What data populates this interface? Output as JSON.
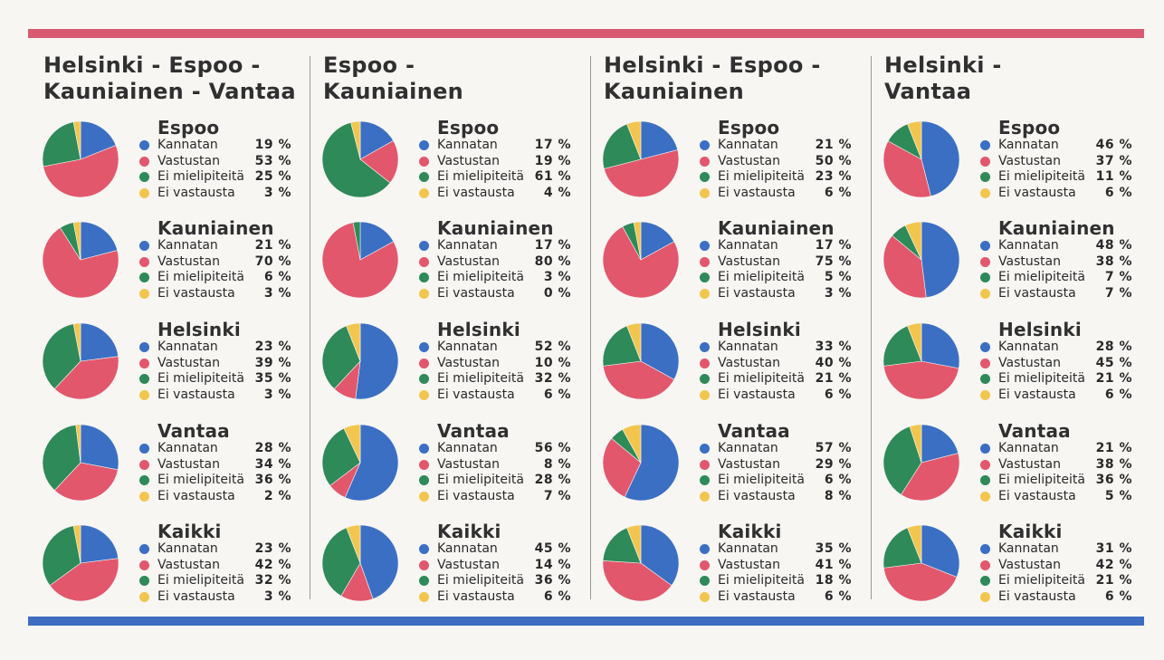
{
  "colors": {
    "kannatan": "#3b6fc4",
    "vastustan": "#e2576c",
    "ei_mielipiteita": "#2e8a58",
    "ei_vastausta": "#f2c64e",
    "top_bar": "#d85a70",
    "bottom_bar": "#3d6cc0"
  },
  "columns": [
    {
      "title": "Helsinki - Espoo -\nKauniainen - Vantaa",
      "charts": [
        {
          "city": "Espoo",
          "kannatan": "19 %",
          "vastustan": "53 %",
          "ei_mielipiteita": "25 %",
          "ei_vastausta": "3 %"
        },
        {
          "city": "Kauniainen",
          "kannatan": "21 %",
          "vastustan": "70 %",
          "ei_mielipiteita": "6 %",
          "ei_vastausta": "3 %"
        },
        {
          "city": "Helsinki",
          "kannatan": "23 %",
          "vastustan": "39 %",
          "ei_mielipiteita": "35 %",
          "ei_vastausta": "3 %"
        },
        {
          "city": "Vantaa",
          "kannatan": "28 %",
          "vastustan": "34 %",
          "ei_mielipiteita": "36 %",
          "ei_vastausta": "2 %"
        },
        {
          "city": "Kaikki",
          "kannatan": "23 %",
          "vastustan": "42 %",
          "ei_mielipiteita": "32 %",
          "ei_vastausta": "3 %"
        }
      ]
    },
    {
      "title": "Espoo -\nKauniainen",
      "charts": [
        {
          "city": "Espoo",
          "kannatan": "17 %",
          "vastustan": "19 %",
          "ei_mielipiteita": "61 %",
          "ei_vastausta": "4 %"
        },
        {
          "city": "Kauniainen",
          "kannatan": "17 %",
          "vastustan": "80 %",
          "ei_mielipiteita": "3 %",
          "ei_vastausta": "0 %"
        },
        {
          "city": "Helsinki",
          "kannatan": "52 %",
          "vastustan": "10 %",
          "ei_mielipiteita": "32 %",
          "ei_vastausta": "6 %"
        },
        {
          "city": "Vantaa",
          "kannatan": "56 %",
          "vastustan": "8 %",
          "ei_mielipiteita": "28 %",
          "ei_vastausta": "7 %"
        },
        {
          "city": "Kaikki",
          "kannatan": "45 %",
          "vastustan": "14 %",
          "ei_mielipiteita": "36 %",
          "ei_vastausta": "6 %"
        }
      ]
    },
    {
      "title": "Helsinki - Espoo -\nKauniainen",
      "charts": [
        {
          "city": "Espoo",
          "kannatan": "21 %",
          "vastustan": "50 %",
          "ei_mielipiteita": "23 %",
          "ei_vastausta": "6 %"
        },
        {
          "city": "Kauniainen",
          "kannatan": "17 %",
          "vastustan": "75 %",
          "ei_mielipiteita": "5 %",
          "ei_vastausta": "3 %"
        },
        {
          "city": "Helsinki",
          "kannatan": "33 %",
          "vastustan": "40 %",
          "ei_mielipiteita": "21 %",
          "ei_vastausta": "6 %"
        },
        {
          "city": "Vantaa",
          "kannatan": "57 %",
          "vastustan": "29 %",
          "ei_mielipiteita": "6 %",
          "ei_vastausta": "8 %"
        },
        {
          "city": "Kaikki",
          "kannatan": "35 %",
          "vastustan": "41 %",
          "ei_mielipiteita": "18 %",
          "ei_vastausta": "6 %"
        }
      ]
    },
    {
      "title": "Helsinki -\nVantaa",
      "charts": [
        {
          "city": "Espoo",
          "kannatan": "46 %",
          "vastustan": "37 %",
          "ei_mielipiteita": "11 %",
          "ei_vastausta": "6 %"
        },
        {
          "city": "Kauniainen",
          "kannatan": "48 %",
          "vastustan": "38 %",
          "ei_mielipiteita": "7 %",
          "ei_vastausta": "7 %"
        },
        {
          "city": "Helsinki",
          "kannatan": "28 %",
          "vastustan": "45 %",
          "ei_mielipiteita": "21 %",
          "ei_vastausta": "6 %"
        },
        {
          "city": "Vantaa",
          "kannatan": "21 %",
          "vastustan": "38 %",
          "ei_mielipiteita": "36 %",
          "ei_vastausta": "5 %"
        },
        {
          "city": "Kaikki",
          "kannatan": "31 %",
          "vastustan": "42 %",
          "ei_mielipiteita": "21 %",
          "ei_vastausta": "6 %"
        }
      ]
    }
  ],
  "legend_labels": {
    "kannatan": "Kannatan",
    "vastustan": "Vastustan",
    "ei_mielipiteita": "Ei mielipiteitä",
    "ei_vastausta": "Ei vastausta"
  },
  "chart_data": [
    {
      "type": "pie",
      "title": "Helsinki - Espoo - Kauniainen - Vantaa",
      "categories": [
        "Kannatan",
        "Vastustan",
        "Ei mielipiteitä",
        "Ei vastausta"
      ],
      "series": [
        {
          "name": "Espoo",
          "values": [
            19,
            53,
            25,
            3
          ]
        },
        {
          "name": "Kauniainen",
          "values": [
            21,
            70,
            6,
            3
          ]
        },
        {
          "name": "Helsinki",
          "values": [
            23,
            39,
            35,
            3
          ]
        },
        {
          "name": "Vantaa",
          "values": [
            28,
            34,
            36,
            2
          ]
        },
        {
          "name": "Kaikki",
          "values": [
            23,
            42,
            32,
            3
          ]
        }
      ]
    },
    {
      "type": "pie",
      "title": "Espoo - Kauniainen",
      "categories": [
        "Kannatan",
        "Vastustan",
        "Ei mielipiteitä",
        "Ei vastausta"
      ],
      "series": [
        {
          "name": "Espoo",
          "values": [
            17,
            19,
            61,
            4
          ]
        },
        {
          "name": "Kauniainen",
          "values": [
            17,
            80,
            3,
            0
          ]
        },
        {
          "name": "Helsinki",
          "values": [
            52,
            10,
            32,
            6
          ]
        },
        {
          "name": "Vantaa",
          "values": [
            56,
            8,
            28,
            7
          ]
        },
        {
          "name": "Kaikki",
          "values": [
            45,
            14,
            36,
            6
          ]
        }
      ]
    },
    {
      "type": "pie",
      "title": "Helsinki - Espoo - Kauniainen",
      "categories": [
        "Kannatan",
        "Vastustan",
        "Ei mielipiteitä",
        "Ei vastausta"
      ],
      "series": [
        {
          "name": "Espoo",
          "values": [
            21,
            50,
            23,
            6
          ]
        },
        {
          "name": "Kauniainen",
          "values": [
            17,
            75,
            5,
            3
          ]
        },
        {
          "name": "Helsinki",
          "values": [
            33,
            40,
            21,
            6
          ]
        },
        {
          "name": "Vantaa",
          "values": [
            57,
            29,
            6,
            8
          ]
        },
        {
          "name": "Kaikki",
          "values": [
            35,
            41,
            18,
            6
          ]
        }
      ]
    },
    {
      "type": "pie",
      "title": "Helsinki - Vantaa",
      "categories": [
        "Kannatan",
        "Vastustan",
        "Ei mielipiteitä",
        "Ei vastausta"
      ],
      "series": [
        {
          "name": "Espoo",
          "values": [
            46,
            37,
            11,
            6
          ]
        },
        {
          "name": "Kauniainen",
          "values": [
            48,
            38,
            7,
            7
          ]
        },
        {
          "name": "Helsinki",
          "values": [
            28,
            45,
            21,
            6
          ]
        },
        {
          "name": "Vantaa",
          "values": [
            21,
            38,
            36,
            5
          ]
        },
        {
          "name": "Kaikki",
          "values": [
            31,
            42,
            21,
            6
          ]
        }
      ]
    }
  ]
}
